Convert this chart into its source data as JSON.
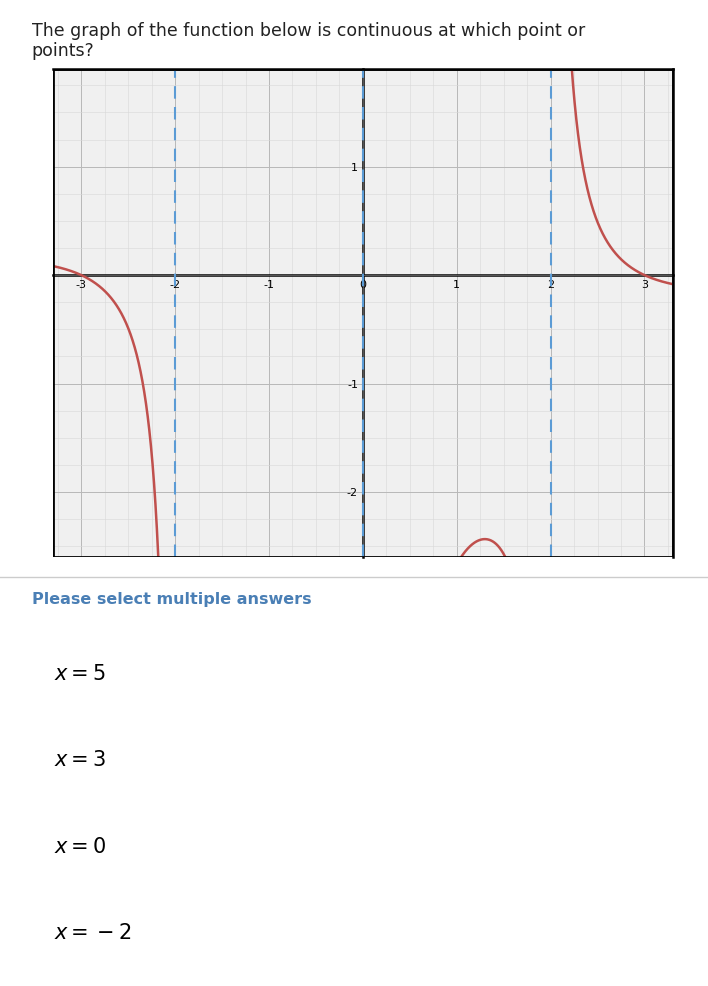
{
  "title_line1": "The graph of the function below is continuous at which point or",
  "title_line2": "points?",
  "title_fontsize": 12.5,
  "question_text": "Please select multiple answers",
  "choices_latex": [
    "x=5",
    "x=3",
    "x=0",
    "x=-2"
  ],
  "xlim": [
    -3.3,
    3.3
  ],
  "ylim": [
    -2.6,
    1.9
  ],
  "asymptotes": [
    -2.0,
    0.0,
    2.0
  ],
  "asymptote_color": "#5b9bd5",
  "curve_color": "#c0504d",
  "grid_minor_color": "#d8d8d8",
  "grid_major_color": "#b8b8b8",
  "axis_color": "#555555",
  "bg_color": "#ffffff",
  "plot_bg_color": "#f0f0f0",
  "choice_border_color": "#cccccc",
  "choice_bg_color": "#ffffff",
  "question_color": "#4a7fb5",
  "text_color": "#222222"
}
